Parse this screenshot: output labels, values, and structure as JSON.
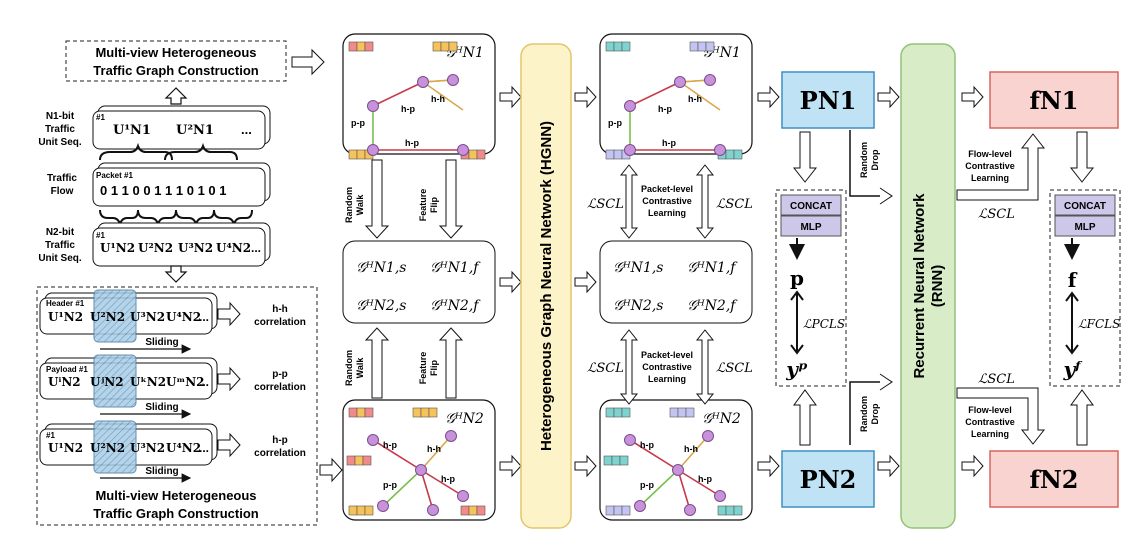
{
  "left": {
    "top_title": [
      "Multi-view Heterogeneous",
      "Traffic Graph Construction"
    ],
    "bottom_title": [
      "Multi-view Heterogeneous",
      "Traffic Graph Construction"
    ],
    "n1_label": [
      "N1-bit",
      "Traffic",
      "Unit Seq."
    ],
    "flow_label": [
      "Traffic",
      "Flow"
    ],
    "n2_label": [
      "N2-bit",
      "Traffic",
      "Unit Seq."
    ],
    "hash": "#1",
    "packet_tag": "Packet #1",
    "header_tag": "Header #1",
    "payload_tag": "Payload #1",
    "bits": "0 1 1 0 0 1 1 1 0 1 0 1",
    "ellipsis": "...",
    "n1_units": [
      "U¹N1",
      "U²N1"
    ],
    "n2_units": [
      "U¹N2",
      "U²N2",
      "U³N2",
      "U⁴N2"
    ],
    "header_units": [
      "U¹N2",
      "U²N2",
      "U³N2",
      "U⁴N2"
    ],
    "payload_units": [
      "UⁱN2",
      "UʲN2",
      "UᵏN2",
      "UᵐN2"
    ],
    "hp_units": [
      "U¹N2",
      "U²N2",
      "U³N2",
      "U⁴N2"
    ],
    "sliding": "Sliding",
    "corr": [
      [
        "h-h",
        "correlation"
      ],
      [
        "p-p",
        "correlation"
      ],
      [
        "h-p",
        "correlation"
      ]
    ]
  },
  "graphs": {
    "g1": "𝒢ᴴN1",
    "g2": "𝒢ᴴN2",
    "edge_pp": "p-p",
    "edge_hh": "h-h",
    "edge_hp": "h-p",
    "aug": [
      "𝒢ᴴN1,s",
      "𝒢ᴴN1,f",
      "𝒢ᴴN2,s",
      "𝒢ᴴN2,f"
    ],
    "random_walk": [
      "Random",
      "Walk"
    ],
    "feature_flip": [
      "Feature",
      "Flip"
    ]
  },
  "hgnn": "Heterogeneous Graph Neural Network (HGNN)",
  "rnn": "Recurrent Neural Network (RNN)",
  "contrast": {
    "l_scl": "ℒSCL",
    "packet": [
      "Packet-level",
      "Contrastive",
      "Learning"
    ],
    "flow": [
      "Flow-level",
      "Contrastive",
      "Learning"
    ],
    "random_drop": [
      "Random",
      "Drop"
    ],
    "l_pcls": "ℒPCLS",
    "l_fcls": "ℒFCLS"
  },
  "outputs": {
    "pn1": "PN1",
    "pn2": "PN2",
    "fn1": "fN1",
    "fn2": "fN2",
    "concat": "CONCAT",
    "mlp": "MLP",
    "p": "p",
    "yp": "yᵖ",
    "f": "f",
    "yf": "yᶠ"
  },
  "colors": {
    "hgnn_fill": "#fdf3c8",
    "hgnn_stroke": "#e3c66b",
    "rnn_fill": "#d8ecc7",
    "rnn_stroke": "#93c27a",
    "p_fill": "#bfe2f5",
    "p_stroke": "#3d8fc4",
    "f_fill": "#f8d3d0",
    "f_stroke": "#d9655d",
    "mlp_fill": "#cdc7ea",
    "node": "#c792d9",
    "edge_pp": "#7cbf4c",
    "edge_hh": "#d6a84a",
    "edge_hp": "#c7394b"
  }
}
